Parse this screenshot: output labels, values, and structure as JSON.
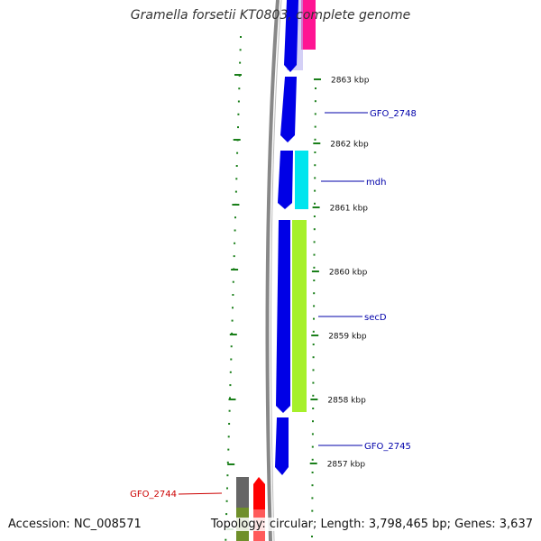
{
  "title": "Gramella forsetii KT0803, complete genome",
  "footer": {
    "accession": "Accession: NC_008571",
    "summary": "Topology: circular; Length: 3,798,465 bp; Genes: 3,637"
  },
  "ticks": [
    {
      "label": "2863 kbp",
      "kbp": 2863
    },
    {
      "label": "2862 kbp",
      "kbp": 2862
    },
    {
      "label": "2861 kbp",
      "kbp": 2861
    },
    {
      "label": "2860 kbp",
      "kbp": 2860
    },
    {
      "label": "2859 kbp",
      "kbp": 2859
    },
    {
      "label": "2858 kbp",
      "kbp": 2858
    },
    {
      "label": "2857 kbp",
      "kbp": 2857
    }
  ],
  "gene_labels": [
    {
      "name": "GFO_2748",
      "color": "#0000aa"
    },
    {
      "name": "mdh",
      "color": "#0000aa"
    },
    {
      "name": "secD",
      "color": "#0000aa"
    },
    {
      "name": "GFO_2745",
      "color": "#0000aa"
    },
    {
      "name": "GFO_2744",
      "color": "#cc0000"
    }
  ],
  "colors": {
    "forward_cds": "#0000e6",
    "backbone": "#888888",
    "tick": "#1a7f1a",
    "magenta_feature": "#ff1493",
    "cyan_feature": "#00e5ee",
    "lime_feature": "#a6f02a",
    "reverse_cds": "#ff0000",
    "gray_feature": "#666666"
  }
}
